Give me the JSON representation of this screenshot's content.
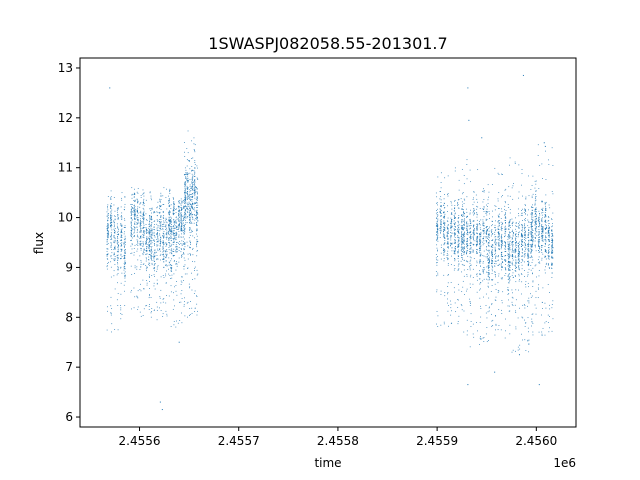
{
  "chart_data": {
    "type": "scatter",
    "title": "1SWASPJ082058.55-201301.7",
    "xlabel": "time",
    "ylabel": "flux",
    "x_offset_label": "1e6",
    "xlim": [
      2455540,
      2456040
    ],
    "ylim": [
      5.8,
      13.2
    ],
    "x_ticks": [
      2455600,
      2455700,
      2455800,
      2455900,
      2456000
    ],
    "x_tick_labels": [
      "2.4556",
      "2.4557",
      "2.4558",
      "2.4559",
      "2.4560"
    ],
    "y_ticks": [
      6,
      7,
      8,
      9,
      10,
      11,
      12,
      13
    ],
    "y_tick_labels": [
      "6",
      "7",
      "8",
      "9",
      "10",
      "11",
      "12",
      "13"
    ],
    "grid": false,
    "marker_color": "#1f77b4",
    "series": [
      {
        "name": "",
        "segments": [
          {
            "x_start": 2455568,
            "x_end": 2455585,
            "nights": 6,
            "y_center": 9.6,
            "y_low": 7.7,
            "y_high": 10.6
          },
          {
            "x_start": 2455592,
            "x_end": 2455610,
            "nights": 7,
            "y_center": 9.8,
            "y_low": 8.0,
            "y_high": 10.6
          },
          {
            "x_start": 2455612,
            "x_end": 2455630,
            "nights": 7,
            "y_center": 9.6,
            "y_low": 7.9,
            "y_high": 10.6
          },
          {
            "x_start": 2455632,
            "x_end": 2455645,
            "nights": 6,
            "y_center": 9.7,
            "y_low": 7.8,
            "y_high": 10.4
          },
          {
            "x_start": 2455646,
            "x_end": 2455658,
            "nights": 6,
            "y_center": 10.3,
            "y_low": 8.0,
            "y_high": 11.8
          },
          {
            "x_start": 2455900,
            "x_end": 2455925,
            "nights": 8,
            "y_center": 9.7,
            "y_low": 7.8,
            "y_high": 11.0
          },
          {
            "x_start": 2455927,
            "x_end": 2455950,
            "nights": 8,
            "y_center": 9.6,
            "y_low": 7.4,
            "y_high": 11.2
          },
          {
            "x_start": 2455952,
            "x_end": 2455972,
            "nights": 7,
            "y_center": 9.5,
            "y_low": 7.5,
            "y_high": 11.0
          },
          {
            "x_start": 2455973,
            "x_end": 2455995,
            "nights": 8,
            "y_center": 9.5,
            "y_low": 7.3,
            "y_high": 11.2
          },
          {
            "x_start": 2455996,
            "x_end": 2456016,
            "nights": 7,
            "y_center": 9.7,
            "y_low": 7.6,
            "y_high": 11.5
          }
        ],
        "outliers": [
          {
            "x": 2455570,
            "y": 12.6
          },
          {
            "x": 2455621,
            "y": 6.3
          },
          {
            "x": 2455623,
            "y": 6.15
          },
          {
            "x": 2455640,
            "y": 7.5
          },
          {
            "x": 2455931,
            "y": 12.6
          },
          {
            "x": 2455932,
            "y": 11.95
          },
          {
            "x": 2455931,
            "y": 6.65
          },
          {
            "x": 2455958,
            "y": 6.9
          },
          {
            "x": 2455945,
            "y": 11.6
          },
          {
            "x": 2455987,
            "y": 12.85
          },
          {
            "x": 2455983,
            "y": 7.25
          },
          {
            "x": 2456003,
            "y": 6.65
          },
          {
            "x": 2456008,
            "y": 11.5
          }
        ]
      }
    ]
  }
}
